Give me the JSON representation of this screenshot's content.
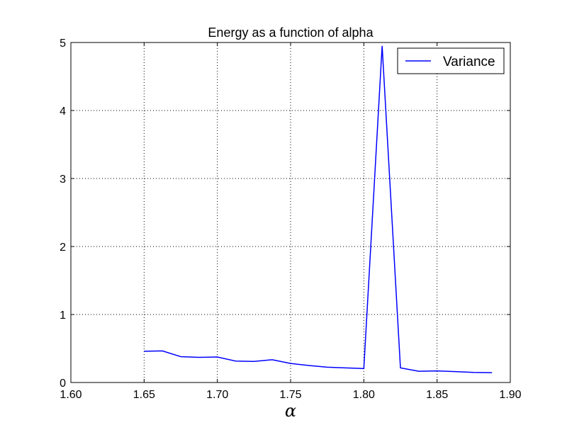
{
  "chart_data": {
    "type": "line",
    "title": "Energy as a function of alpha",
    "xlabel": "α",
    "ylabel": "",
    "xlim": [
      1.6,
      1.9
    ],
    "ylim": [
      0,
      5
    ],
    "x_ticks": [
      "1.60",
      "1.65",
      "1.70",
      "1.75",
      "1.80",
      "1.85",
      "1.90"
    ],
    "y_ticks": [
      "0",
      "1",
      "2",
      "3",
      "4",
      "5"
    ],
    "grid": true,
    "legend_position": "top-right",
    "series": [
      {
        "name": "Variance",
        "color": "#0000ff",
        "x": [
          1.65,
          1.6625,
          1.675,
          1.6875,
          1.7,
          1.7125,
          1.725,
          1.7375,
          1.75,
          1.7625,
          1.775,
          1.7875,
          1.8,
          1.8125,
          1.825,
          1.8375,
          1.85,
          1.8625,
          1.875,
          1.8875
        ],
        "y": [
          0.46,
          0.465,
          0.38,
          0.37,
          0.375,
          0.315,
          0.31,
          0.335,
          0.28,
          0.25,
          0.225,
          0.215,
          0.205,
          4.95,
          0.215,
          0.165,
          0.17,
          0.16,
          0.148,
          0.145
        ]
      }
    ]
  }
}
